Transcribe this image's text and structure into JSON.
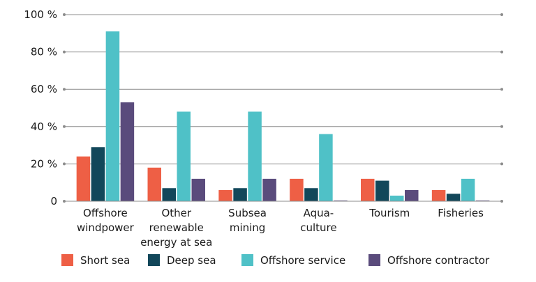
{
  "chart_data": {
    "type": "bar",
    "title": "",
    "xlabel": "",
    "ylabel": "",
    "ylim": [
      0,
      100
    ],
    "yticks": [
      {
        "value": 0,
        "label": "0"
      },
      {
        "value": 20,
        "label": "20 %"
      },
      {
        "value": 40,
        "label": "40 %"
      },
      {
        "value": 60,
        "label": "60 %"
      },
      {
        "value": 80,
        "label": "80 %"
      },
      {
        "value": 100,
        "label": "100 %"
      }
    ],
    "grid": true,
    "legend_position": "bottom",
    "categories": [
      [
        "Offshore",
        "windpower"
      ],
      [
        "Other",
        "renewable",
        "energy at sea"
      ],
      [
        "Subsea",
        "mining"
      ],
      [
        "Aqua-",
        "culture"
      ],
      [
        "Tourism"
      ],
      [
        "Fisheries"
      ]
    ],
    "series": [
      {
        "name": "Short sea",
        "color": "#ee5f45",
        "values": [
          24,
          18,
          6,
          12,
          12,
          6
        ]
      },
      {
        "name": "Deep sea",
        "color": "#12475a",
        "values": [
          29,
          7,
          7,
          7,
          11,
          4
        ]
      },
      {
        "name": "Offshore service",
        "color": "#4fc1c7",
        "values": [
          91,
          48,
          48,
          36,
          3,
          12
        ]
      },
      {
        "name": "Offshore contractor",
        "color": "#5a4b7c",
        "values": [
          53,
          12,
          12,
          0.4,
          6,
          0.4
        ]
      }
    ]
  }
}
